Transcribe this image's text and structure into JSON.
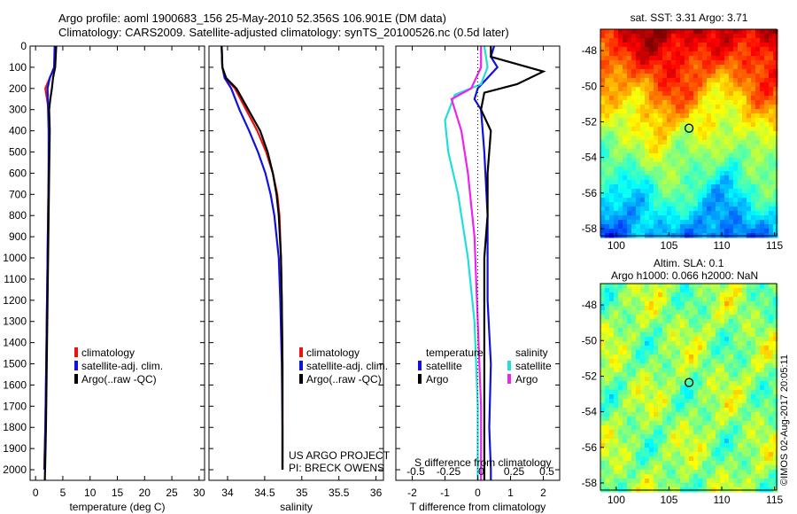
{
  "title_line1": "Argo profile: aoml 1900683_156 25-May-2010 52.356S 106.901E (DM data)",
  "title_line2": "Climatology: CARS2009. Satellite-adjusted climatology: synTS_20100526.nc (0.5d later)",
  "sst_title": "sat. SST: 3.31 Argo: 3.71",
  "sla_title1": "Altim. SLA: 0.1",
  "sla_title2": "Argo h1000: 0.066 h2000: NaN",
  "watermark": "©IMOS 02-Aug-2017 20:05:11",
  "project_line1": "US ARGO PROJECT",
  "project_line2": "PI: BRECK OWENS",
  "colors": {
    "climatology": "#ee1111",
    "satellite": "#1111dd",
    "argo": "#000000",
    "sat_s": "#22dddd",
    "argo_s": "#ee22ee"
  },
  "chart_data": [
    {
      "type": "line",
      "xlabel": "temperature (deg C)",
      "ylim": [
        2050,
        0
      ],
      "xlim": [
        -1,
        31
      ],
      "yticks": [
        0,
        100,
        200,
        300,
        400,
        500,
        600,
        700,
        800,
        900,
        1000,
        1100,
        1200,
        1300,
        1400,
        1500,
        1600,
        1700,
        1800,
        1900,
        2000
      ],
      "xticks": [
        0,
        5,
        10,
        15,
        20,
        25,
        30
      ],
      "legend": [
        "climatology",
        "satellite-adj. clim.",
        "Argo(..raw -QC)"
      ],
      "series": [
        {
          "name": "climatology",
          "color": "climatology",
          "x": [
            3.6,
            3.5,
            2.6,
            1.8,
            2.4,
            2.5,
            2.4,
            2.3,
            2.2,
            2.1,
            2.0,
            1.9,
            1.8,
            1.6
          ],
          "y": [
            0,
            100,
            150,
            200,
            300,
            400,
            600,
            800,
            1000,
            1200,
            1400,
            1600,
            1800,
            2000
          ]
        },
        {
          "name": "satellite-adj. clim.",
          "color": "satellite",
          "x": [
            3.5,
            3.4,
            2.6,
            2.2,
            2.3,
            2.4,
            2.4,
            2.3,
            2.2,
            2.1,
            2.0,
            1.9,
            1.8,
            1.6
          ],
          "y": [
            0,
            100,
            150,
            200,
            300,
            400,
            600,
            800,
            1000,
            1200,
            1400,
            1600,
            1800,
            2000
          ]
        },
        {
          "name": "Argo(..raw -QC)",
          "color": "argo",
          "x": [
            3.8,
            3.6,
            3.2,
            3.0,
            2.7,
            2.5,
            2.6,
            2.5,
            2.4,
            2.3,
            2.2,
            2.1,
            2.0,
            1.9,
            1.8,
            1.7
          ],
          "y": [
            0,
            100,
            150,
            200,
            250,
            300,
            400,
            600,
            800,
            1000,
            1200,
            1400,
            1600,
            1800,
            1950,
            2050
          ]
        }
      ]
    },
    {
      "type": "line",
      "xlabel": "salinity",
      "ylim": [
        2050,
        0
      ],
      "xlim": [
        33.75,
        36.1
      ],
      "xticks": [
        34,
        34.5,
        35,
        35.5,
        36
      ],
      "legend": [
        "climatology",
        "satellite-adj. clim.",
        "Argo(..raw -QC)"
      ],
      "series": [
        {
          "name": "climatology",
          "color": "climatology",
          "x": [
            33.92,
            33.93,
            33.97,
            34.1,
            34.25,
            34.4,
            34.52,
            34.61,
            34.67,
            34.7,
            34.72,
            34.73,
            34.74,
            34.74,
            34.74
          ],
          "y": [
            0,
            100,
            150,
            200,
            300,
            400,
            500,
            600,
            700,
            800,
            1000,
            1200,
            1500,
            1800,
            2000
          ]
        },
        {
          "name": "satellite-adj. clim.",
          "color": "satellite",
          "x": [
            33.92,
            33.93,
            33.96,
            34.05,
            34.16,
            34.29,
            34.41,
            34.51,
            34.58,
            34.63,
            34.69,
            34.71,
            34.73,
            34.74,
            34.74
          ],
          "y": [
            0,
            100,
            150,
            200,
            300,
            400,
            500,
            600,
            700,
            800,
            1000,
            1200,
            1500,
            1800,
            2000
          ]
        },
        {
          "name": "Argo(..raw -QC)",
          "color": "argo",
          "x": [
            33.92,
            33.93,
            33.98,
            34.12,
            34.28,
            34.44,
            34.54,
            34.61,
            34.66,
            34.69,
            34.72,
            34.73,
            34.74,
            34.74
          ],
          "y": [
            0,
            100,
            150,
            200,
            300,
            400,
            500,
            600,
            700,
            800,
            1000,
            1200,
            1500,
            2000
          ]
        }
      ]
    },
    {
      "type": "line",
      "xlabel": "T difference from climatology",
      "xlabel2": "S difference from climatology",
      "ylim": [
        2050,
        0
      ],
      "xlim": [
        -2.5,
        2.5
      ],
      "xticks": [
        -2,
        -1,
        0,
        1,
        2
      ],
      "s_ticks": [
        "-0.5",
        "-0.25",
        "0",
        "0.25",
        "0.5"
      ],
      "legend_temperature": [
        "temperature",
        "satellite",
        "Argo"
      ],
      "legend_salinity": [
        "salinity",
        "satellite",
        "Argo"
      ],
      "series": [
        {
          "name": "satellite",
          "color": "satellite",
          "x": [
            0.5,
            0.4,
            0.6,
            0.3,
            0.0,
            -0.1,
            0.1,
            0.2,
            0.3,
            0.3,
            0.4,
            0.35,
            0.4,
            0.4
          ],
          "y": [
            0,
            50,
            100,
            150,
            200,
            250,
            300,
            500,
            800,
            1200,
            1500,
            1800,
            2000,
            2050
          ]
        },
        {
          "name": "Argo",
          "color": "argo",
          "x": [
            0.4,
            0.4,
            2.0,
            1.2,
            0.2,
            0.1,
            0.4,
            0.3,
            0.3,
            0.2,
            0.2,
            0.2,
            0.2,
            0.2
          ],
          "y": [
            0,
            50,
            120,
            180,
            220,
            300,
            400,
            600,
            800,
            1000,
            1300,
            1600,
            1900,
            2050
          ]
        },
        {
          "name": "satellite",
          "color": "sat_s",
          "x": [
            0.2,
            0.3,
            0.1,
            -0.7,
            -1.0,
            -0.9,
            -0.6,
            -0.3,
            -0.1,
            0.0,
            0.0
          ],
          "y": [
            0,
            100,
            180,
            230,
            350,
            500,
            700,
            1000,
            1300,
            1700,
            2050
          ]
        },
        {
          "name": "Argo",
          "color": "argo_s",
          "x": [
            0.1,
            0.1,
            -0.2,
            -0.8,
            -0.5,
            -0.3,
            -0.1,
            0.0,
            0.1,
            0.1
          ],
          "y": [
            0,
            100,
            200,
            250,
            400,
            600,
            900,
            1300,
            1700,
            2050
          ]
        }
      ]
    },
    {
      "type": "heatmap",
      "title": "sat. SST: 3.31 Argo: 3.71",
      "xlim": [
        98.5,
        115.2
      ],
      "ylim": [
        -58.4,
        -46.8
      ],
      "xticks": [
        100,
        105,
        110,
        115
      ],
      "yticks": [
        -48,
        -50,
        -52,
        -54,
        -56,
        -58
      ],
      "marker": {
        "x": 106.9,
        "y": -52.36
      }
    },
    {
      "type": "heatmap",
      "title": "Altim. SLA: 0.1",
      "xlim": [
        98.5,
        115.2
      ],
      "ylim": [
        -58.4,
        -46.8
      ],
      "xticks": [
        100,
        105,
        110,
        115
      ],
      "yticks": [
        -48,
        -50,
        -52,
        -54,
        -56,
        -58
      ],
      "marker": {
        "x": 106.9,
        "y": -52.36
      }
    }
  ]
}
